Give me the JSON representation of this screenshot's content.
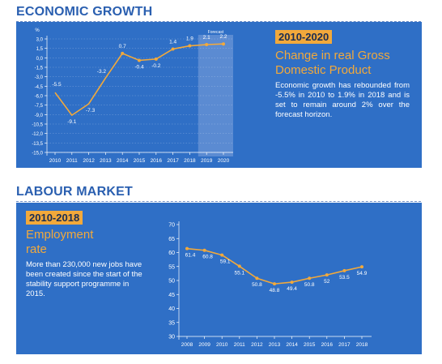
{
  "sections": {
    "growth": {
      "title": "ECONOMIC GROWTH",
      "badge": "2010-2020",
      "headline": [
        "Change in real Gross",
        "Domestic Product"
      ],
      "text": "Economic growth has rebounded from -5.5% in 2010 to 1.9% in 2018 and is set to remain around 2% over the forecast horizon."
    },
    "labour": {
      "title": "LABOUR MARKET",
      "badge": "2010-2018",
      "headline": [
        "Employment",
        "rate"
      ],
      "text": "More than 230,000 new jobs have been created since the start of the stability support programme in 2015."
    }
  },
  "colors": {
    "panel": "#2f6fc6",
    "line": "#f2a93b",
    "title": "#2a5fb0",
    "forecast": "#7fa3dc"
  },
  "chart_data": [
    {
      "type": "line",
      "ylabel": "%",
      "ylim": [
        -15,
        3
      ],
      "yticks": [
        "3,0",
        "1,5",
        "0,0",
        "-1,5",
        "-3,0",
        "-4,5",
        "-6,0",
        "-7,5",
        "-9,0",
        "-10,5",
        "-12,0",
        "-13,5",
        "-15,0"
      ],
      "x": [
        "2010",
        "2011",
        "2012",
        "2013",
        "2014",
        "2015",
        "2016",
        "2017",
        "2018",
        "2019",
        "2020"
      ],
      "values": [
        -5.5,
        -9.1,
        -7.3,
        -3.2,
        0.7,
        -0.4,
        -0.2,
        1.4,
        1.9,
        2.1,
        2.2
      ],
      "labels": [
        "-5.5",
        "-9.1",
        "-7.3",
        "-3.2",
        "0.7",
        "-0.4",
        "-0.2",
        "1.4",
        "1.9",
        "2.1",
        "2.2"
      ],
      "markers": [
        false,
        false,
        false,
        false,
        true,
        true,
        true,
        true,
        true,
        true,
        true
      ],
      "forecast_from": "2019",
      "forecast_label": "Forecast"
    },
    {
      "type": "line",
      "ylim": [
        30,
        70
      ],
      "yticks": [
        "70",
        "65",
        "60",
        "55",
        "50",
        "45",
        "40",
        "35",
        "30"
      ],
      "x": [
        "2008",
        "2009",
        "2010",
        "2011",
        "2012",
        "2013",
        "2014",
        "2015",
        "2016",
        "2017",
        "2018"
      ],
      "values": [
        61.4,
        60.8,
        59.1,
        55.1,
        50.8,
        48.8,
        49.4,
        50.8,
        52,
        53.5,
        54.9
      ],
      "labels": [
        "61.4",
        "60.8",
        "59.1",
        "55.1",
        "50.8",
        "48.8",
        "49.4",
        "50.8",
        "52",
        "53.5",
        "54.9"
      ]
    }
  ]
}
